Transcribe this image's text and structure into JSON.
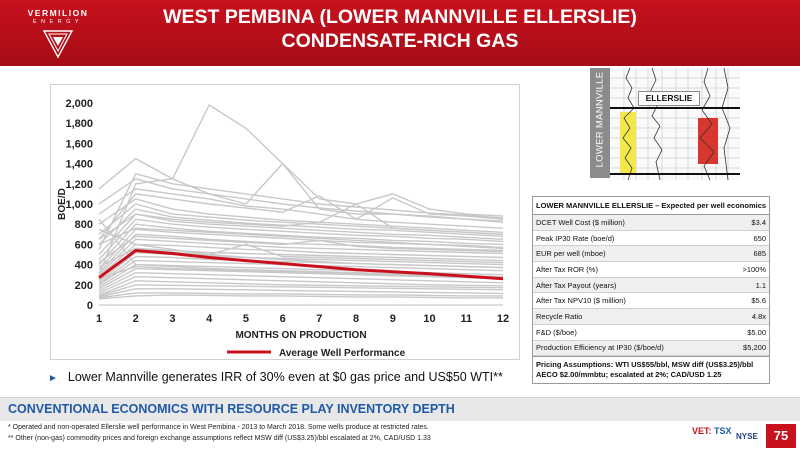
{
  "header": {
    "logo_name": "VERMILION",
    "logo_sub": "ENERGY",
    "title_line1": "WEST PEMBINA (LOWER MANNVILLE ELLERSLIE)",
    "title_line2": "CONDENSATE-RICH GAS"
  },
  "log_panel": {
    "vertical_label": "LOWER MANNVILLE",
    "tag": "ELLERSLIE"
  },
  "economics": {
    "heading": "LOWER MANNVILLE ELLERSLIE – Expected per well economics",
    "rows": [
      {
        "label": "DCET Well Cost ($ million)",
        "value": "$3.4"
      },
      {
        "label": "Peak IP30 Rate (boe/d)",
        "value": "650"
      },
      {
        "label": "EUR per well (mboe)",
        "value": "685"
      },
      {
        "label": "After Tax ROR (%)",
        "value": ">100%"
      },
      {
        "label": "After Tax Payout (years)",
        "value": "1.1"
      },
      {
        "label": "After Tax NPV10 ($ million)",
        "value": "$5.6"
      },
      {
        "label": "Recycle Ratio",
        "value": "4.8x"
      },
      {
        "label": "F&D ($/boe)",
        "value": "$5.00"
      },
      {
        "label": "Production Efficiency at IP30 ($/boe/d)",
        "value": "$5,200"
      }
    ],
    "assumptions": "Pricing Assumptions: WTI US$55/bbl, MSW diff (US$3.25)/bbl AECO $2.00/mmbtu; escalated at 2%; CAD/USD 1.25"
  },
  "bullet": "Lower Mannville generates IRR of 30% even at $0 gas price and US$50 WTI**",
  "banner": "CONVENTIONAL ECONOMICS WITH RESOURCE PLAY INVENTORY DEPTH",
  "footnotes": {
    "note1": "* Operated and non-operated Ellerslie well performance in West Pembina - 2013 to March 2018.  Some wells produce at restricted rates.",
    "note2": "** Other (non-gas) commodity prices and foreign exchange assumptions reflect MSW diff (US$3.25)/bbl escalated at 2%, CAD/USD 1.33"
  },
  "footer": {
    "ticker_prefix": "VET:",
    "ticker_exchange": "TSX",
    "exchange2": "NYSE",
    "page_number": "75"
  },
  "colors": {
    "brand_red": "#c8111d",
    "accent_blue": "#1f5aa6",
    "well_gray": "#c8c8c8"
  },
  "chart_data": {
    "type": "line",
    "xlabel": "MONTHS ON PRODUCTION",
    "ylabel": "BOE/D",
    "x": [
      1,
      2,
      3,
      4,
      5,
      6,
      7,
      8,
      9,
      10,
      11,
      12
    ],
    "xlim": [
      1,
      12
    ],
    "ylim": [
      0,
      2000
    ],
    "yticks": [
      0,
      200,
      400,
      600,
      800,
      1000,
      1200,
      1400,
      1600,
      1800,
      2000
    ],
    "yticklabels": [
      "0",
      "200",
      "400",
      "600",
      "800",
      "1,000",
      "1,200",
      "1,400",
      "1,600",
      "1,800",
      "2,000"
    ],
    "xticklabels": [
      "1",
      "2",
      "3",
      "4",
      "5",
      "6",
      "7",
      "8",
      "9",
      "10",
      "11",
      "12"
    ],
    "legend": {
      "position": "bottom",
      "entries": [
        "Average Well Performance"
      ]
    },
    "average_series": {
      "name": "Average Well Performance",
      "values": [
        270,
        540,
        510,
        470,
        440,
        410,
        380,
        350,
        330,
        310,
        285,
        260
      ],
      "color": "#c8111d"
    },
    "individual_wells": [
      [
        1150,
        1450,
        1250,
        1980,
        1750,
        1400,
        1050,
        1000,
        1100,
        950,
        900,
        880
      ],
      [
        300,
        1200,
        1250,
        1100,
        1000,
        1400,
        950,
        900,
        900,
        880,
        850,
        820
      ],
      [
        900,
        1150,
        1100,
        1050,
        980,
        950,
        900,
        850,
        1060,
        900,
        880,
        850
      ],
      [
        650,
        1100,
        1050,
        1000,
        960,
        920,
        1080,
        850,
        820,
        800,
        780,
        760
      ],
      [
        800,
        1050,
        950,
        900,
        870,
        840,
        820,
        800,
        780,
        760,
        740,
        720
      ],
      [
        700,
        1000,
        900,
        870,
        840,
        820,
        800,
        780,
        760,
        740,
        720,
        700
      ],
      [
        600,
        950,
        870,
        840,
        810,
        790,
        770,
        750,
        740,
        720,
        700,
        680
      ],
      [
        500,
        900,
        830,
        800,
        780,
        760,
        740,
        720,
        700,
        690,
        670,
        650
      ],
      [
        450,
        850,
        800,
        770,
        750,
        730,
        710,
        690,
        680,
        660,
        650,
        630
      ],
      [
        400,
        800,
        760,
        730,
        710,
        690,
        670,
        660,
        640,
        630,
        610,
        600
      ],
      [
        350,
        750,
        720,
        700,
        680,
        660,
        640,
        620,
        610,
        600,
        590,
        570
      ],
      [
        320,
        700,
        680,
        650,
        630,
        610,
        600,
        590,
        570,
        560,
        550,
        540
      ],
      [
        300,
        650,
        630,
        610,
        590,
        570,
        560,
        550,
        540,
        530,
        520,
        510
      ],
      [
        280,
        600,
        590,
        570,
        550,
        540,
        520,
        510,
        500,
        490,
        480,
        470
      ],
      [
        250,
        560,
        540,
        520,
        510,
        500,
        490,
        480,
        470,
        460,
        450,
        440
      ],
      [
        230,
        520,
        500,
        490,
        470,
        460,
        450,
        440,
        430,
        420,
        410,
        400
      ],
      [
        210,
        480,
        470,
        450,
        440,
        430,
        420,
        410,
        400,
        390,
        380,
        370
      ],
      [
        200,
        440,
        430,
        420,
        410,
        400,
        390,
        380,
        370,
        360,
        350,
        340
      ],
      [
        180,
        400,
        390,
        380,
        370,
        360,
        350,
        340,
        330,
        320,
        310,
        300
      ],
      [
        160,
        360,
        350,
        340,
        330,
        320,
        310,
        300,
        290,
        280,
        270,
        260
      ],
      [
        140,
        320,
        310,
        300,
        290,
        280,
        270,
        260,
        250,
        240,
        230,
        220
      ],
      [
        120,
        280,
        270,
        260,
        250,
        240,
        230,
        220,
        210,
        200,
        195,
        190
      ],
      [
        100,
        240,
        230,
        220,
        210,
        200,
        195,
        190,
        185,
        180,
        175,
        170
      ],
      [
        90,
        200,
        195,
        190,
        185,
        180,
        175,
        170,
        165,
        160,
        155,
        150
      ],
      [
        80,
        160,
        160,
        155,
        150,
        145,
        140,
        135,
        130,
        125,
        120,
        115
      ],
      [
        70,
        120,
        120,
        115,
        110,
        110,
        105,
        100,
        100,
        95,
        90,
        90
      ],
      [
        60,
        90,
        100,
        95,
        90,
        90,
        85,
        80,
        80,
        75,
        70,
        70
      ],
      [
        850,
        400,
        380,
        360,
        350,
        340,
        330,
        320,
        310,
        300,
        290,
        280
      ],
      [
        750,
        600,
        550,
        500,
        470,
        450,
        430,
        410,
        400,
        390,
        380,
        370
      ],
      [
        1000,
        1250,
        1150,
        1100,
        1050,
        1000,
        960,
        930,
        900,
        870,
        850,
        830
      ],
      [
        550,
        1300,
        1200,
        1150,
        1100,
        1050,
        1000,
        970,
        940,
        910,
        890,
        860
      ],
      [
        650,
        900,
        850,
        820,
        800,
        780,
        820,
        1000,
        760,
        740,
        720,
        700
      ],
      [
        420,
        680,
        660,
        640,
        620,
        600,
        640,
        580,
        560,
        550,
        540,
        530
      ],
      [
        380,
        560,
        520,
        500,
        600,
        480,
        470,
        460,
        450,
        440,
        430,
        420
      ],
      [
        260,
        380,
        360,
        350,
        340,
        330,
        320,
        310,
        300,
        290,
        280,
        270
      ],
      [
        600,
        760,
        740,
        720,
        700,
        680,
        660,
        640,
        620,
        600,
        580,
        560
      ]
    ]
  }
}
